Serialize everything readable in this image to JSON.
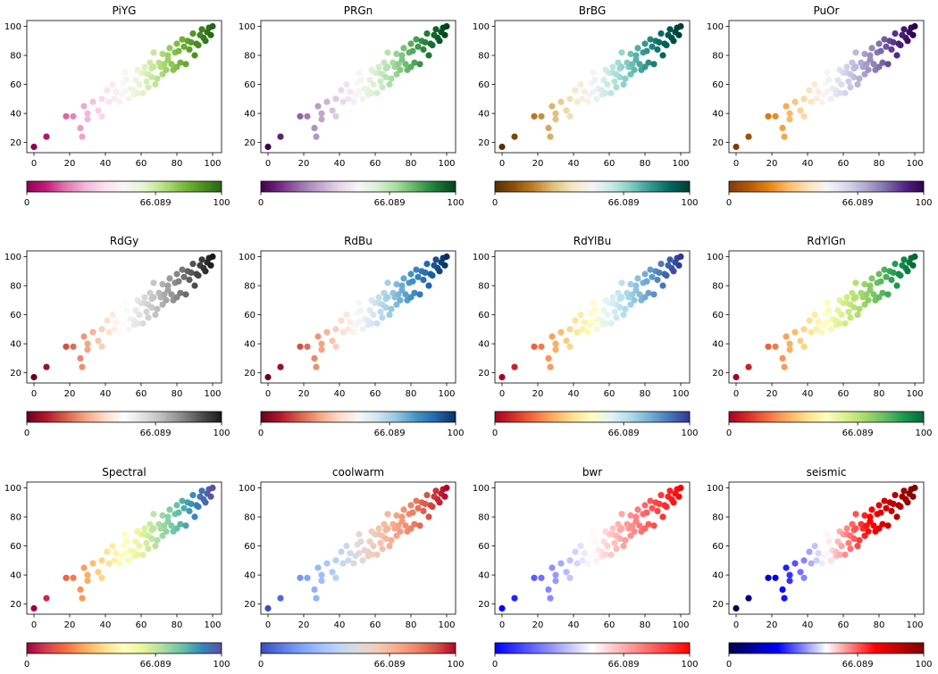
{
  "figure_title": "",
  "chart_data": {
    "type": "scatter",
    "x": [
      0,
      7,
      27,
      26,
      22,
      18,
      30,
      30,
      33,
      28,
      36,
      38,
      38,
      45,
      44,
      41,
      42,
      46,
      48,
      49,
      51,
      50,
      53,
      51,
      54,
      56,
      52,
      57,
      56,
      58,
      58,
      60,
      59,
      62,
      61,
      62,
      63,
      64,
      66,
      64,
      65,
      66,
      68,
      67,
      67,
      69,
      70,
      71,
      72,
      72,
      73,
      75,
      74,
      75,
      77,
      76,
      78,
      80,
      79,
      80,
      82,
      81,
      83,
      85,
      84,
      87,
      86,
      88,
      90,
      89,
      91,
      92,
      93,
      95,
      94,
      96,
      97,
      98,
      99,
      100
    ],
    "y": [
      17,
      24,
      24,
      30,
      38,
      38,
      36,
      40,
      48,
      45,
      42,
      50,
      38,
      50,
      60,
      56,
      48,
      55,
      48,
      53,
      55,
      61,
      50,
      68,
      57,
      53,
      63,
      63,
      56,
      54,
      70,
      68,
      60,
      72,
      54,
      68,
      62,
      58,
      71,
      67,
      75,
      65,
      60,
      82,
      72,
      64,
      75,
      72,
      67,
      81,
      74,
      80,
      70,
      77,
      74,
      85,
      70,
      72,
      82,
      88,
      75,
      83,
      91,
      74,
      86,
      84,
      90,
      89,
      80,
      95,
      88,
      87,
      94,
      92,
      98,
      90,
      96,
      99,
      94,
      100
    ],
    "xlim": [
      -4,
      105
    ],
    "ylim": [
      13,
      104
    ],
    "xticks": [
      "0",
      "20",
      "40",
      "60",
      "80",
      "100"
    ],
    "yticks": [
      "20",
      "40",
      "60",
      "80",
      "100"
    ],
    "colorbar_ticks": [
      "0",
      "66.089",
      "100"
    ],
    "colorbar_mid_value": 66.089,
    "panels": [
      {
        "title": "PiYG",
        "colors": [
          "#8e0152",
          "#c51b7d",
          "#de77ae",
          "#f1b6da",
          "#fde0ef",
          "#f7f7f7",
          "#e6f5d0",
          "#b8e186",
          "#7fbc41",
          "#4d9221",
          "#276419"
        ]
      },
      {
        "title": "PRGn",
        "colors": [
          "#40004b",
          "#762a83",
          "#9970ab",
          "#c2a5cf",
          "#e7d4e8",
          "#f7f7f7",
          "#d9f0d3",
          "#a6dba0",
          "#5aae61",
          "#1b7837",
          "#00441b"
        ]
      },
      {
        "title": "BrBG",
        "colors": [
          "#543005",
          "#8c510a",
          "#bf812d",
          "#dfc27d",
          "#f6e8c3",
          "#f5f5f5",
          "#c7eae5",
          "#80cdc1",
          "#35978f",
          "#01665e",
          "#003c30"
        ]
      },
      {
        "title": "PuOr",
        "colors": [
          "#7f3b08",
          "#b35806",
          "#e08214",
          "#fdb863",
          "#fee0b6",
          "#f7f7f7",
          "#d8daeb",
          "#b2abd2",
          "#8073ac",
          "#542788",
          "#2d004b"
        ]
      },
      {
        "title": "RdGy",
        "colors": [
          "#67001f",
          "#b2182b",
          "#d6604d",
          "#f4a582",
          "#fddbc7",
          "#ffffff",
          "#e0e0e0",
          "#bababa",
          "#878787",
          "#4d4d4d",
          "#1a1a1a"
        ]
      },
      {
        "title": "RdBu",
        "colors": [
          "#67001f",
          "#b2182b",
          "#d6604d",
          "#f4a582",
          "#fddbc7",
          "#f7f7f7",
          "#d1e5f0",
          "#92c5de",
          "#4393c3",
          "#2166ac",
          "#053061"
        ]
      },
      {
        "title": "RdYlBu",
        "colors": [
          "#a50026",
          "#d73027",
          "#f46d43",
          "#fdae61",
          "#fee090",
          "#ffffbf",
          "#e0f3f8",
          "#abd9e9",
          "#74add1",
          "#4575b4",
          "#313695"
        ]
      },
      {
        "title": "RdYlGn",
        "colors": [
          "#a50026",
          "#d73027",
          "#f46d43",
          "#fdae61",
          "#fee08b",
          "#ffffbf",
          "#d9ef8b",
          "#a6d96a",
          "#66bd63",
          "#1a9850",
          "#006837"
        ]
      },
      {
        "title": "Spectral",
        "colors": [
          "#9e0142",
          "#d53e4f",
          "#f46d43",
          "#fdae61",
          "#fee08b",
          "#ffffbf",
          "#e6f598",
          "#abdda4",
          "#66c2a5",
          "#3288bd",
          "#5e4fa2"
        ]
      },
      {
        "title": "coolwarm",
        "colors": [
          "#3b4cc0",
          "#5977e3",
          "#7b9ff9",
          "#9ebeff",
          "#c0d4f5",
          "#dddcdc",
          "#f2cbb7",
          "#f7ac8e",
          "#ee8468",
          "#d65244",
          "#b40426"
        ]
      },
      {
        "title": "bwr",
        "colors": [
          "#0000ff",
          "#ffffff",
          "#ff0000"
        ]
      },
      {
        "title": "seismic",
        "colors": [
          "#00004c",
          "#0000ff",
          "#ffffff",
          "#ff0000",
          "#800000"
        ]
      }
    ]
  }
}
